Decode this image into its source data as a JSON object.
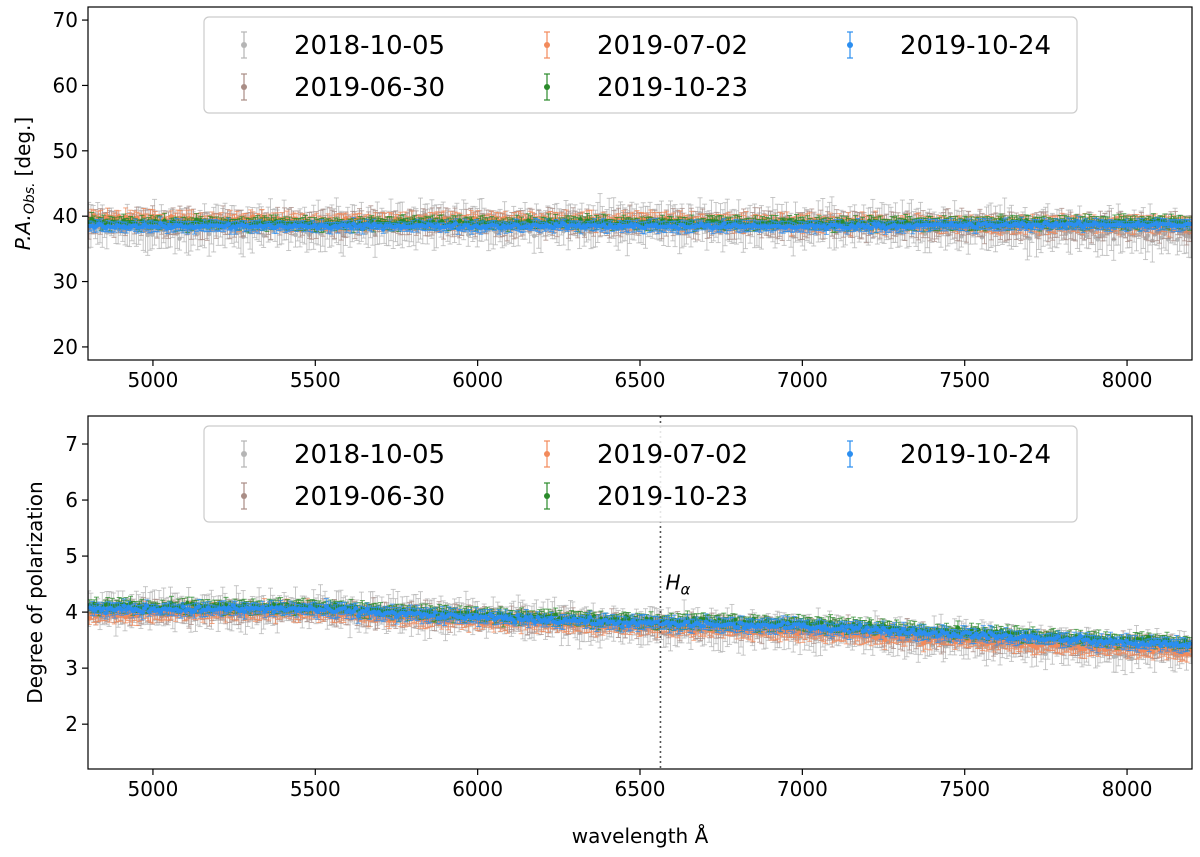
{
  "chart_data": [
    {
      "type": "scatter",
      "title": "",
      "xlabel": "",
      "ylabel": "P.A.",
      "ylabel_sub": "Obs.",
      "ylabel_unit": "[deg.]",
      "xlim": [
        4800,
        8200
      ],
      "ylim": [
        18,
        72
      ],
      "xticks": [
        5000,
        5500,
        6000,
        6500,
        7000,
        7500,
        8000
      ],
      "yticks": [
        20,
        30,
        40,
        50,
        60,
        70
      ],
      "legend_position": "top",
      "error_bars": true,
      "series": [
        {
          "name": "2018-10-05",
          "color": "#b5b5b5",
          "x": [
            4800,
            5000,
            5500,
            6000,
            6500,
            7000,
            7500,
            8000,
            8200
          ],
          "y": [
            38.5,
            38.0,
            38.3,
            38.6,
            38.9,
            38.5,
            38.2,
            37.5,
            37.3
          ],
          "yerr": 2.5
        },
        {
          "name": "2019-06-30",
          "color": "#a98d86",
          "x": [
            4800,
            5000,
            5500,
            6000,
            6500,
            7000,
            7500,
            8000,
            8200
          ],
          "y": [
            39.0,
            39.0,
            38.8,
            38.9,
            38.9,
            38.8,
            38.5,
            38.5,
            38.4
          ],
          "yerr": 1.5
        },
        {
          "name": "2019-07-02",
          "color": "#f28a5b",
          "x": [
            4800,
            5000,
            5500,
            6000,
            6500,
            7000,
            7500,
            8000,
            8200
          ],
          "y": [
            39.5,
            39.5,
            39.2,
            39.3,
            39.3,
            39.0,
            38.8,
            38.8,
            38.7
          ],
          "yerr": 1.0
        },
        {
          "name": "2019-10-23",
          "color": "#2a8a2a",
          "x": [
            4800,
            5000,
            5500,
            6000,
            6500,
            7000,
            7500,
            8000,
            8200
          ],
          "y": [
            39.0,
            39.0,
            38.8,
            39.0,
            39.0,
            38.9,
            38.9,
            39.0,
            39.0
          ],
          "yerr": 0.8
        },
        {
          "name": "2019-10-24",
          "color": "#2b8ef0",
          "x": [
            4800,
            5000,
            5500,
            6000,
            6500,
            7000,
            7500,
            8000,
            8200
          ],
          "y": [
            38.5,
            38.5,
            38.4,
            38.5,
            38.5,
            38.4,
            38.6,
            38.7,
            38.7
          ],
          "yerr": 0.7
        }
      ]
    },
    {
      "type": "scatter",
      "title": "",
      "xlabel": "wavelength Å",
      "ylabel": "Degree of polarization",
      "xlim": [
        4800,
        8200
      ],
      "ylim": [
        1.2,
        7.5
      ],
      "xticks": [
        5000,
        5500,
        6000,
        6500,
        7000,
        7500,
        8000
      ],
      "yticks": [
        2,
        3,
        4,
        5,
        6,
        7
      ],
      "legend_position": "top",
      "error_bars": true,
      "annotations": [
        {
          "x": 6563,
          "label": "H",
          "label_sub": "α",
          "style": "dotted vertical line"
        }
      ],
      "series": [
        {
          "name": "2018-10-05",
          "color": "#b5b5b5",
          "x": [
            4800,
            5000,
            5500,
            6000,
            6500,
            7000,
            7500,
            8000,
            8200
          ],
          "y": [
            4.0,
            4.05,
            4.05,
            3.9,
            3.75,
            3.65,
            3.5,
            3.3,
            3.3
          ],
          "yerr": 0.25
        },
        {
          "name": "2019-06-30",
          "color": "#a98d86",
          "x": [
            4800,
            5000,
            5500,
            6000,
            6500,
            7000,
            7500,
            8000,
            8200
          ],
          "y": [
            4.0,
            4.0,
            4.0,
            3.9,
            3.75,
            3.7,
            3.5,
            3.4,
            3.35
          ],
          "yerr": 0.15
        },
        {
          "name": "2019-07-02",
          "color": "#f28a5b",
          "x": [
            4800,
            5000,
            5500,
            6000,
            6500,
            7000,
            7500,
            8000,
            8200
          ],
          "y": [
            3.95,
            4.0,
            4.0,
            3.85,
            3.75,
            3.65,
            3.5,
            3.35,
            3.3
          ],
          "yerr": 0.12
        },
        {
          "name": "2019-10-23",
          "color": "#2a8a2a",
          "x": [
            4800,
            5000,
            5500,
            6000,
            6500,
            7000,
            7500,
            8000,
            8200
          ],
          "y": [
            4.1,
            4.1,
            4.1,
            3.95,
            3.85,
            3.8,
            3.65,
            3.5,
            3.45
          ],
          "yerr": 0.1
        },
        {
          "name": "2019-10-24",
          "color": "#2b8ef0",
          "x": [
            4800,
            5000,
            5500,
            6000,
            6500,
            7000,
            7500,
            8000,
            8200
          ],
          "y": [
            4.05,
            4.05,
            4.05,
            3.9,
            3.8,
            3.75,
            3.6,
            3.45,
            3.4
          ],
          "yerr": 0.1
        }
      ]
    }
  ]
}
